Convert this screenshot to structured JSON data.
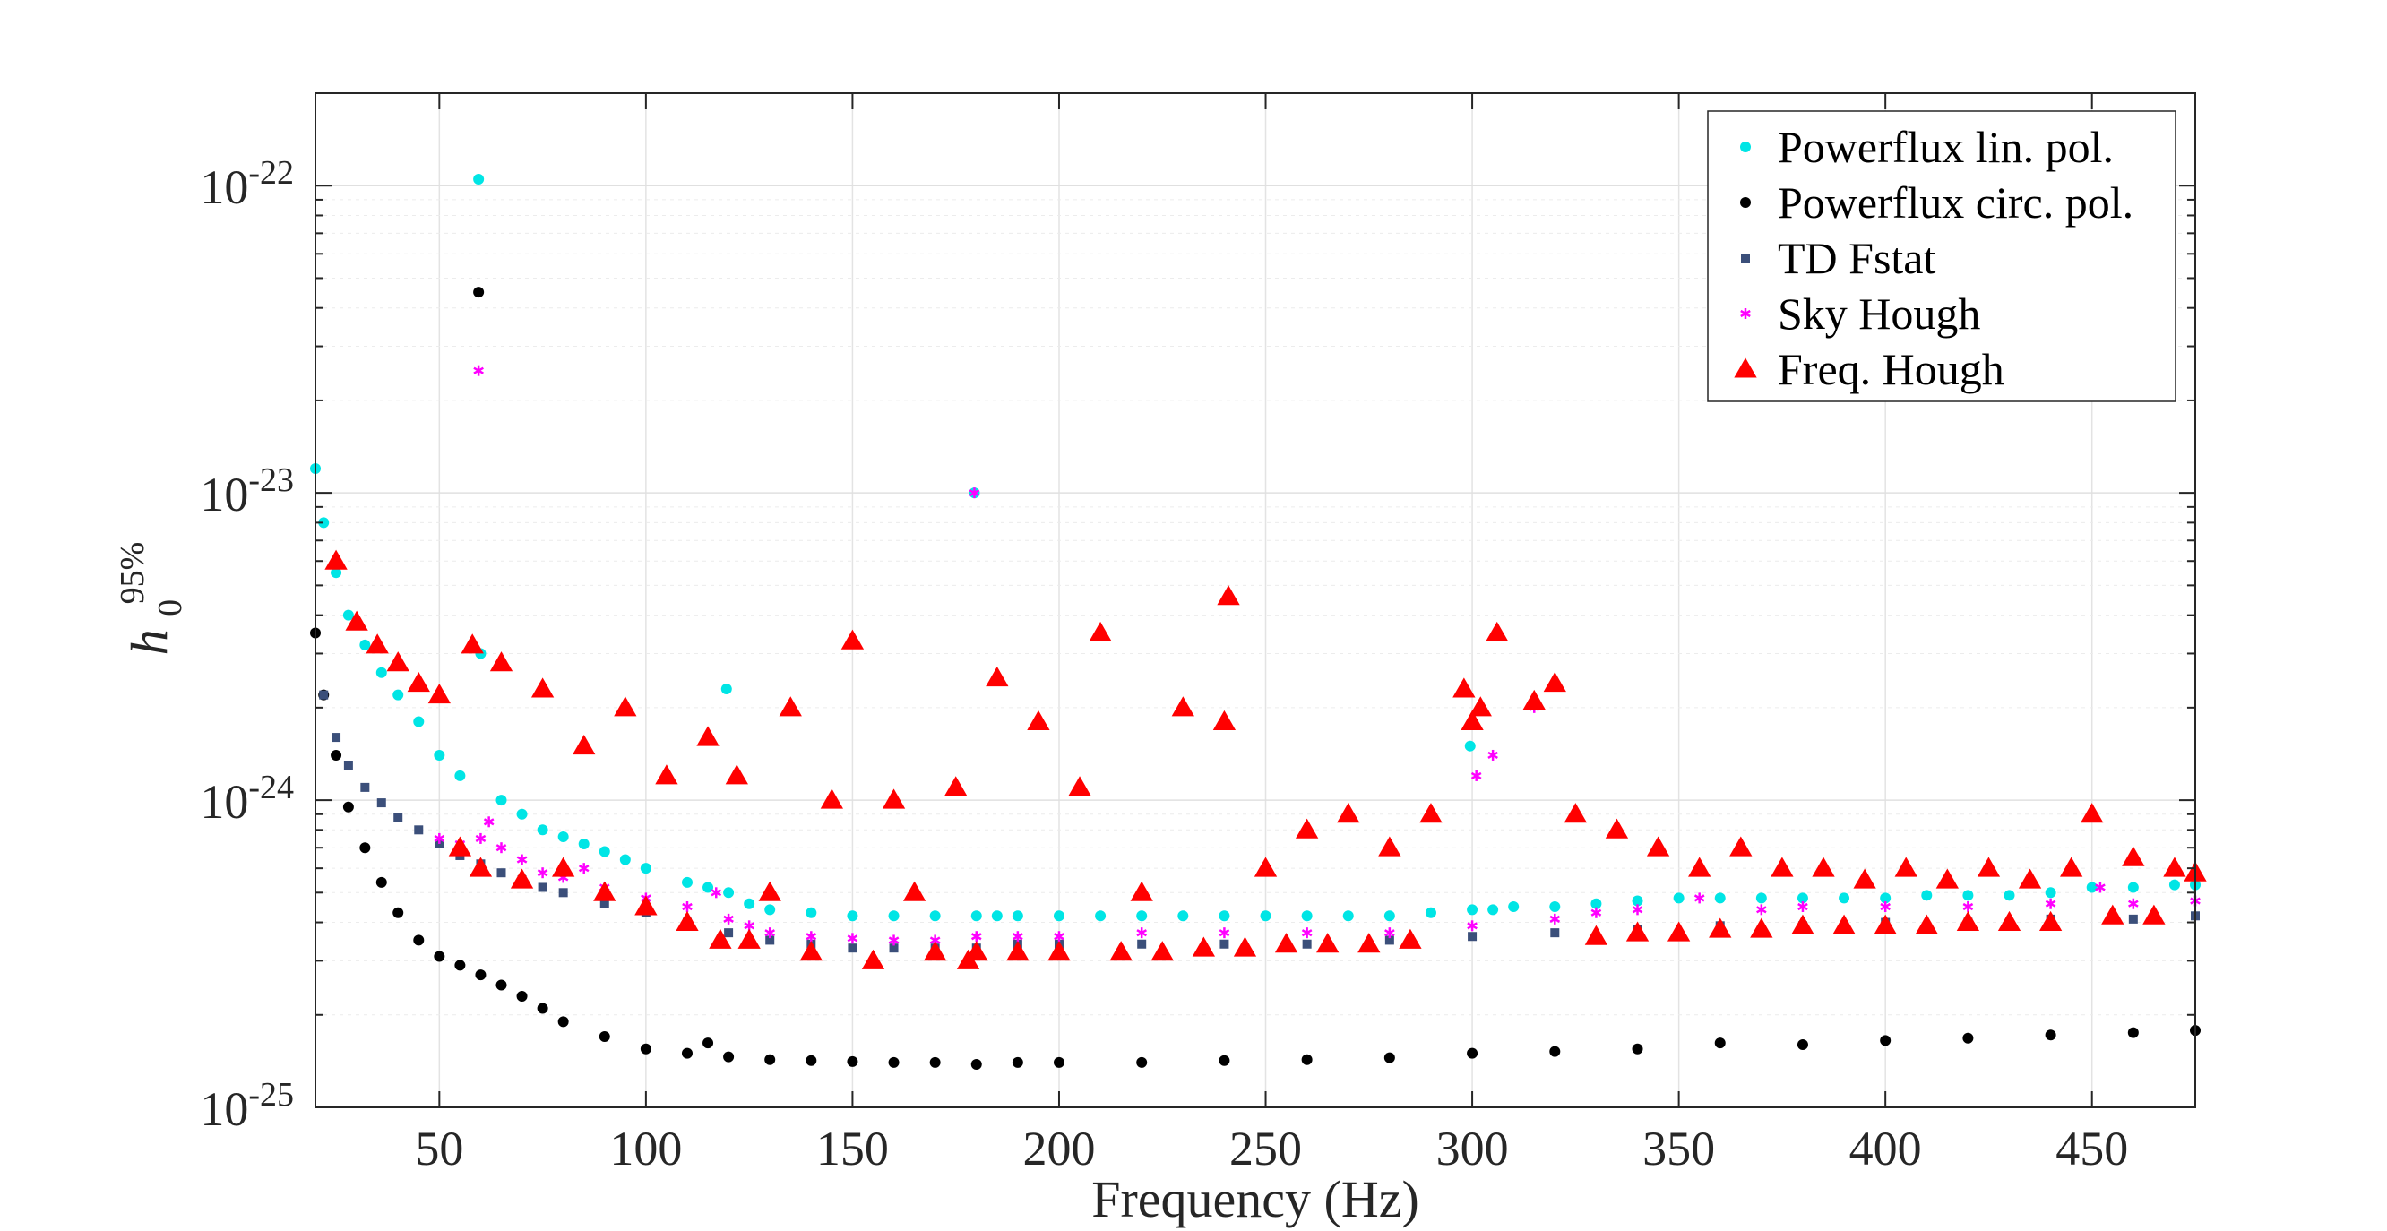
{
  "chart_data": {
    "type": "scatter",
    "xlabel": "Frequency (Hz)",
    "ylabel": {
      "base": "h",
      "sub": "0",
      "sup": "95%"
    },
    "xlim": [
      20,
      475
    ],
    "ylim": [
      1e-25,
      2e-22
    ],
    "yscale": "log",
    "grid": true,
    "legend_position": "top-right",
    "x_ticks": [
      50,
      100,
      150,
      200,
      250,
      300,
      350,
      400,
      450
    ],
    "x_tick_labels": [
      "50",
      "100",
      "150",
      "200",
      "250",
      "300",
      "350",
      "400",
      "450"
    ],
    "y_ticks": [
      1e-25,
      1e-24,
      1e-23,
      1e-22
    ],
    "y_tick_labels": [
      {
        "base": "10",
        "exp": "-25"
      },
      {
        "base": "10",
        "exp": "-24"
      },
      {
        "base": "10",
        "exp": "-23"
      },
      {
        "base": "10",
        "exp": "-22"
      }
    ],
    "series": [
      {
        "name": "Powerflux lin. pol.",
        "marker": "circle",
        "color": "#00e5e5",
        "x": [
          20,
          22,
          25,
          28,
          32,
          36,
          40,
          45,
          50,
          55,
          59.5,
          60,
          65,
          70,
          75,
          80,
          85,
          90,
          95,
          100,
          110,
          115,
          119.5,
          120,
          125,
          130,
          140,
          150,
          160,
          170,
          179.5,
          180,
          185,
          190,
          200,
          210,
          220,
          230,
          240,
          250,
          260,
          270,
          280,
          290,
          299.5,
          300,
          305,
          310,
          320,
          330,
          340,
          350,
          360,
          370,
          380,
          390,
          400,
          410,
          420,
          430,
          440,
          450,
          460,
          470,
          475
        ],
        "y": [
          1.2e-23,
          8e-24,
          5.5e-24,
          4e-24,
          3.2e-24,
          2.6e-24,
          2.2e-24,
          1.8e-24,
          1.4e-24,
          1.2e-24,
          1.05e-22,
          3e-24,
          1e-24,
          9e-25,
          8e-25,
          7.6e-25,
          7.2e-25,
          6.8e-25,
          6.4e-25,
          6e-25,
          5.4e-25,
          5.2e-25,
          2.3e-24,
          5e-25,
          4.6e-25,
          4.4e-25,
          4.3e-25,
          4.2e-25,
          4.2e-25,
          4.2e-25,
          1e-23,
          4.2e-25,
          4.2e-25,
          4.2e-25,
          4.2e-25,
          4.2e-25,
          4.2e-25,
          4.2e-25,
          4.2e-25,
          4.2e-25,
          4.2e-25,
          4.2e-25,
          4.2e-25,
          4.3e-25,
          1.5e-24,
          4.4e-25,
          4.4e-25,
          4.5e-25,
          4.5e-25,
          4.6e-25,
          4.7e-25,
          4.8e-25,
          4.8e-25,
          4.8e-25,
          4.8e-25,
          4.8e-25,
          4.8e-25,
          4.9e-25,
          4.9e-25,
          4.9e-25,
          5e-25,
          5.2e-25,
          5.2e-25,
          5.3e-25,
          5.3e-25
        ]
      },
      {
        "name": "Powerflux circ. pol.",
        "marker": "circle",
        "color": "#000000",
        "x": [
          20,
          22,
          25,
          28,
          32,
          36,
          40,
          45,
          50,
          55,
          59.5,
          60,
          65,
          70,
          75,
          80,
          90,
          100,
          110,
          115,
          120,
          130,
          140,
          150,
          160,
          170,
          180,
          190,
          200,
          220,
          240,
          260,
          280,
          300,
          320,
          340,
          360,
          380,
          400,
          420,
          440,
          460,
          475
        ],
        "y": [
          3.5e-24,
          2.2e-24,
          1.4e-24,
          9.5e-25,
          7e-25,
          5.4e-25,
          4.3e-25,
          3.5e-25,
          3.1e-25,
          2.9e-25,
          4.5e-23,
          2.7e-25,
          2.5e-25,
          2.3e-25,
          2.1e-25,
          1.9e-25,
          1.7e-25,
          1.55e-25,
          1.5e-25,
          1.62e-25,
          1.46e-25,
          1.43e-25,
          1.42e-25,
          1.41e-25,
          1.4e-25,
          1.4e-25,
          1.38e-25,
          1.4e-25,
          1.4e-25,
          1.4e-25,
          1.42e-25,
          1.43e-25,
          1.45e-25,
          1.5e-25,
          1.52e-25,
          1.55e-25,
          1.62e-25,
          1.6e-25,
          1.65e-25,
          1.68e-25,
          1.72e-25,
          1.75e-25,
          1.78e-25
        ]
      },
      {
        "name": "TD Fstat",
        "marker": "square",
        "color": "#3b4f7a",
        "x": [
          22,
          25,
          28,
          32,
          36,
          40,
          45,
          50,
          55,
          60,
          65,
          70,
          75,
          80,
          90,
          100,
          110,
          120,
          130,
          140,
          150,
          160,
          170,
          180,
          190,
          200,
          220,
          240,
          260,
          280,
          300,
          320,
          340,
          360,
          380,
          400,
          420,
          440,
          460,
          475
        ],
        "y": [
          2.2e-24,
          1.6e-24,
          1.3e-24,
          1.1e-24,
          9.8e-25,
          8.8e-25,
          8e-25,
          7.2e-25,
          6.6e-25,
          6.2e-25,
          5.8e-25,
          5.5e-25,
          5.2e-25,
          5e-25,
          4.6e-25,
          4.3e-25,
          4e-25,
          3.7e-25,
          3.5e-25,
          3.4e-25,
          3.3e-25,
          3.3e-25,
          3.3e-25,
          3.3e-25,
          3.4e-25,
          3.4e-25,
          3.4e-25,
          3.4e-25,
          3.4e-25,
          3.5e-25,
          3.6e-25,
          3.7e-25,
          3.8e-25,
          3.9e-25,
          3.9e-25,
          4e-25,
          4e-25,
          4.1e-25,
          4.1e-25,
          4.2e-25
        ]
      },
      {
        "name": "Sky Hough",
        "marker": "asterisk",
        "color": "#ff00ff",
        "x": [
          50,
          55,
          59.5,
          60,
          62,
          65,
          70,
          75,
          80,
          85,
          90,
          100,
          110,
          117,
          120,
          125,
          130,
          140,
          150,
          160,
          170,
          179.5,
          180,
          190,
          200,
          220,
          240,
          260,
          280,
          300,
          301,
          305,
          315,
          320,
          330,
          340,
          355,
          370,
          380,
          400,
          420,
          440,
          452,
          460,
          475
        ],
        "y": [
          7.5e-25,
          7.2e-25,
          2.5e-23,
          7.5e-25,
          8.5e-25,
          7e-25,
          6.4e-25,
          5.8e-25,
          5.6e-25,
          6e-25,
          5.2e-25,
          4.8e-25,
          4.5e-25,
          5e-25,
          4.1e-25,
          3.9e-25,
          3.7e-25,
          3.6e-25,
          3.55e-25,
          3.5e-25,
          3.5e-25,
          1e-23,
          3.6e-25,
          3.6e-25,
          3.6e-25,
          3.7e-25,
          3.7e-25,
          3.7e-25,
          3.7e-25,
          3.9e-25,
          1.2e-24,
          1.4e-24,
          2e-24,
          4.1e-25,
          4.3e-25,
          4.4e-25,
          4.8e-25,
          4.4e-25,
          4.5e-25,
          4.5e-25,
          4.5e-25,
          4.6e-25,
          5.2e-25,
          4.6e-25,
          4.7e-25
        ]
      },
      {
        "name": "Freq. Hough",
        "marker": "triangle",
        "color": "#ff0000",
        "x": [
          25,
          30,
          35,
          40,
          45,
          50,
          55,
          58,
          60,
          65,
          70,
          75,
          80,
          85,
          90,
          95,
          100,
          105,
          110,
          115,
          118,
          122,
          125,
          130,
          135,
          140,
          145,
          150,
          155,
          160,
          165,
          170,
          175,
          178,
          180,
          185,
          190,
          195,
          200,
          205,
          210,
          215,
          220,
          225,
          230,
          235,
          240,
          241,
          245,
          250,
          255,
          260,
          265,
          270,
          275,
          280,
          285,
          290,
          298,
          300,
          302,
          306,
          315,
          320,
          325,
          330,
          335,
          340,
          345,
          350,
          355,
          360,
          365,
          370,
          375,
          380,
          385,
          390,
          395,
          400,
          405,
          410,
          415,
          420,
          425,
          430,
          435,
          440,
          445,
          450,
          455,
          460,
          465,
          470,
          475
        ],
        "y": [
          6e-24,
          3.8e-24,
          3.2e-24,
          2.8e-24,
          2.4e-24,
          2.2e-24,
          7e-25,
          3.2e-24,
          6e-25,
          2.8e-24,
          5.5e-25,
          2.3e-24,
          6e-25,
          1.5e-24,
          5e-25,
          2e-24,
          4.5e-25,
          1.2e-24,
          4e-25,
          1.6e-24,
          3.5e-25,
          1.2e-24,
          3.5e-25,
          5e-25,
          2e-24,
          3.2e-25,
          1e-24,
          3.3e-24,
          3e-25,
          1e-24,
          5e-25,
          3.2e-25,
          1.1e-24,
          3e-25,
          3.2e-25,
          2.5e-24,
          3.2e-25,
          1.8e-24,
          3.2e-25,
          1.1e-24,
          3.5e-24,
          3.2e-25,
          5e-25,
          3.2e-25,
          2e-24,
          3.3e-25,
          1.8e-24,
          4.6e-24,
          3.3e-25,
          6e-25,
          3.4e-25,
          8e-25,
          3.4e-25,
          9e-25,
          3.4e-25,
          7e-25,
          3.5e-25,
          9e-25,
          2.3e-24,
          1.8e-24,
          2e-24,
          3.5e-24,
          2.1e-24,
          2.4e-24,
          9e-25,
          3.6e-25,
          8e-25,
          3.7e-25,
          7e-25,
          3.7e-25,
          6e-25,
          3.8e-25,
          7e-25,
          3.8e-25,
          6e-25,
          3.9e-25,
          6e-25,
          3.9e-25,
          5.5e-25,
          3.9e-25,
          6e-25,
          3.9e-25,
          5.5e-25,
          4e-25,
          6e-25,
          4e-25,
          5.5e-25,
          4e-25,
          6e-25,
          9e-25,
          4.2e-25,
          6.5e-25,
          4.2e-25,
          6e-25,
          5.8e-25
        ]
      }
    ]
  }
}
